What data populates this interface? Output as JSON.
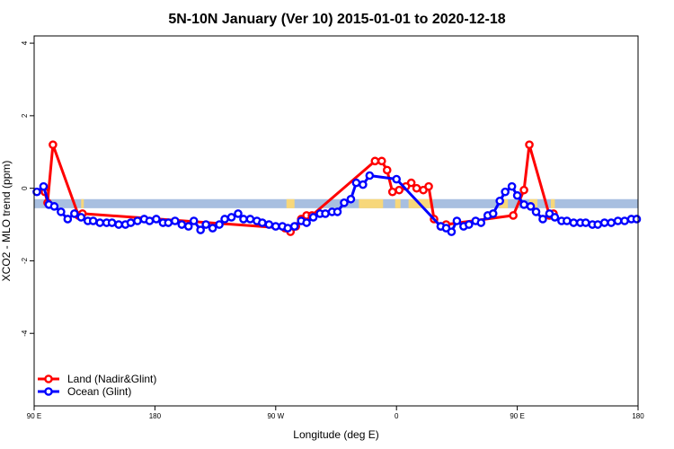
{
  "chart_data": {
    "type": "line",
    "title": "5N-10N January (Ver 10)   2015-01-01 to 2020-12-18",
    "xlabel": "Longitude (deg E)",
    "ylabel": "XCO2 - MLO trend (ppm)",
    "xlim": [
      90,
      540
    ],
    "ylim": [
      -6,
      4.2
    ],
    "x_ticks": [
      {
        "value": 90,
        "label": "90 E"
      },
      {
        "value": 180,
        "label": "180"
      },
      {
        "value": 270,
        "label": "90 W"
      },
      {
        "value": 360,
        "label": "0"
      },
      {
        "value": 450,
        "label": "90 E"
      },
      {
        "value": 540,
        "label": "180"
      }
    ],
    "y_ticks": [
      {
        "value": -4,
        "label": "-4"
      },
      {
        "value": -2,
        "label": "-2"
      },
      {
        "value": 0,
        "label": "0"
      },
      {
        "value": 2,
        "label": "2"
      },
      {
        "value": 4,
        "label": "4"
      }
    ],
    "band": {
      "ymin": -0.55,
      "ymax": -0.3,
      "water_color": "#a8bfe0",
      "land_color": "#f7d77a"
    },
    "land_segments": [
      [
        125,
        127
      ],
      [
        278,
        284
      ],
      [
        332,
        350
      ],
      [
        359,
        363
      ],
      [
        369,
        387
      ],
      [
        437,
        443
      ],
      [
        459,
        465
      ],
      [
        475,
        478
      ]
    ],
    "legend": [
      {
        "name": "Land (Nadir&Glint)",
        "color": "#ff0000"
      },
      {
        "name": "Ocean (Glint)",
        "color": "#0000ff"
      }
    ],
    "series": [
      {
        "name": "Land (Nadir&Glint)",
        "color": "#ff0000",
        "points": [
          {
            "x": 98,
            "y": -0.1
          },
          {
            "x": 100,
            "y": -0.4
          },
          {
            "x": 104,
            "y": 1.2
          },
          {
            "x": 123,
            "y": -0.75
          },
          {
            "x": 126,
            "y": -0.7
          },
          {
            "x": 277,
            "y": -1.1
          },
          {
            "x": 281,
            "y": -1.2
          },
          {
            "x": 285,
            "y": -1.05
          },
          {
            "x": 289,
            "y": -0.85
          },
          {
            "x": 293,
            "y": -0.75
          },
          {
            "x": 297,
            "y": -0.75
          },
          {
            "x": 344,
            "y": 0.75
          },
          {
            "x": 349,
            "y": 0.75
          },
          {
            "x": 353,
            "y": 0.5
          },
          {
            "x": 357,
            "y": -0.1
          },
          {
            "x": 362,
            "y": -0.05
          },
          {
            "x": 367,
            "y": 0.05
          },
          {
            "x": 371,
            "y": 0.15
          },
          {
            "x": 375,
            "y": 0.0
          },
          {
            "x": 380,
            "y": -0.05
          },
          {
            "x": 384,
            "y": 0.05
          },
          {
            "x": 388,
            "y": -0.85
          },
          {
            "x": 393,
            "y": -1.05
          },
          {
            "x": 397,
            "y": -1.0
          },
          {
            "x": 447,
            "y": -0.75
          },
          {
            "x": 455,
            "y": -0.05
          },
          {
            "x": 459,
            "y": 1.2
          },
          {
            "x": 474,
            "y": -0.75
          },
          {
            "x": 477,
            "y": -0.7
          }
        ]
      },
      {
        "name": "Ocean (Glint)",
        "color": "#0000ff",
        "points": [
          {
            "x": 92,
            "y": -0.1
          },
          {
            "x": 97,
            "y": 0.05
          },
          {
            "x": 101,
            "y": -0.45
          },
          {
            "x": 105,
            "y": -0.5
          },
          {
            "x": 110,
            "y": -0.65
          },
          {
            "x": 115,
            "y": -0.85
          },
          {
            "x": 120,
            "y": -0.7
          },
          {
            "x": 125,
            "y": -0.8
          },
          {
            "x": 130,
            "y": -0.9
          },
          {
            "x": 134,
            "y": -0.9
          },
          {
            "x": 139,
            "y": -0.95
          },
          {
            "x": 144,
            "y": -0.95
          },
          {
            "x": 148,
            "y": -0.95
          },
          {
            "x": 153,
            "y": -1.0
          },
          {
            "x": 158,
            "y": -1.0
          },
          {
            "x": 162,
            "y": -0.95
          },
          {
            "x": 167,
            "y": -0.9
          },
          {
            "x": 172,
            "y": -0.85
          },
          {
            "x": 176,
            "y": -0.9
          },
          {
            "x": 181,
            "y": -0.85
          },
          {
            "x": 186,
            "y": -0.95
          },
          {
            "x": 190,
            "y": -0.95
          },
          {
            "x": 195,
            "y": -0.9
          },
          {
            "x": 200,
            "y": -1.0
          },
          {
            "x": 205,
            "y": -1.05
          },
          {
            "x": 209,
            "y": -0.9
          },
          {
            "x": 214,
            "y": -1.15
          },
          {
            "x": 218,
            "y": -1.0
          },
          {
            "x": 223,
            "y": -1.1
          },
          {
            "x": 228,
            "y": -1.0
          },
          {
            "x": 232,
            "y": -0.85
          },
          {
            "x": 237,
            "y": -0.8
          },
          {
            "x": 242,
            "y": -0.7
          },
          {
            "x": 246,
            "y": -0.85
          },
          {
            "x": 251,
            "y": -0.85
          },
          {
            "x": 256,
            "y": -0.9
          },
          {
            "x": 260,
            "y": -0.95
          },
          {
            "x": 265,
            "y": -1.0
          },
          {
            "x": 270,
            "y": -1.05
          },
          {
            "x": 275,
            "y": -1.05
          },
          {
            "x": 279,
            "y": -1.1
          },
          {
            "x": 284,
            "y": -1.05
          },
          {
            "x": 289,
            "y": -0.9
          },
          {
            "x": 293,
            "y": -0.95
          },
          {
            "x": 298,
            "y": -0.8
          },
          {
            "x": 303,
            "y": -0.7
          },
          {
            "x": 307,
            "y": -0.7
          },
          {
            "x": 312,
            "y": -0.65
          },
          {
            "x": 316,
            "y": -0.65
          },
          {
            "x": 321,
            "y": -0.4
          },
          {
            "x": 326,
            "y": -0.3
          },
          {
            "x": 330,
            "y": 0.15
          },
          {
            "x": 335,
            "y": 0.1
          },
          {
            "x": 340,
            "y": 0.35
          },
          {
            "x": 360,
            "y": 0.25
          },
          {
            "x": 393,
            "y": -1.05
          },
          {
            "x": 397,
            "y": -1.1
          },
          {
            "x": 401,
            "y": -1.2
          },
          {
            "x": 405,
            "y": -0.9
          },
          {
            "x": 410,
            "y": -1.05
          },
          {
            "x": 414,
            "y": -1.0
          },
          {
            "x": 419,
            "y": -0.9
          },
          {
            "x": 423,
            "y": -0.95
          },
          {
            "x": 428,
            "y": -0.75
          },
          {
            "x": 432,
            "y": -0.7
          },
          {
            "x": 437,
            "y": -0.35
          },
          {
            "x": 441,
            "y": -0.1
          },
          {
            "x": 446,
            "y": 0.05
          },
          {
            "x": 450,
            "y": -0.2
          },
          {
            "x": 455,
            "y": -0.45
          },
          {
            "x": 460,
            "y": -0.5
          },
          {
            "x": 464,
            "y": -0.65
          },
          {
            "x": 469,
            "y": -0.85
          },
          {
            "x": 474,
            "y": -0.7
          },
          {
            "x": 478,
            "y": -0.8
          },
          {
            "x": 483,
            "y": -0.9
          },
          {
            "x": 487,
            "y": -0.9
          },
          {
            "x": 492,
            "y": -0.95
          },
          {
            "x": 497,
            "y": -0.95
          },
          {
            "x": 501,
            "y": -0.95
          },
          {
            "x": 506,
            "y": -1.0
          },
          {
            "x": 510,
            "y": -1.0
          },
          {
            "x": 515,
            "y": -0.95
          },
          {
            "x": 520,
            "y": -0.95
          },
          {
            "x": 525,
            "y": -0.9
          },
          {
            "x": 530,
            "y": -0.9
          },
          {
            "x": 535,
            "y": -0.85
          },
          {
            "x": 539,
            "y": -0.85
          }
        ]
      }
    ]
  }
}
